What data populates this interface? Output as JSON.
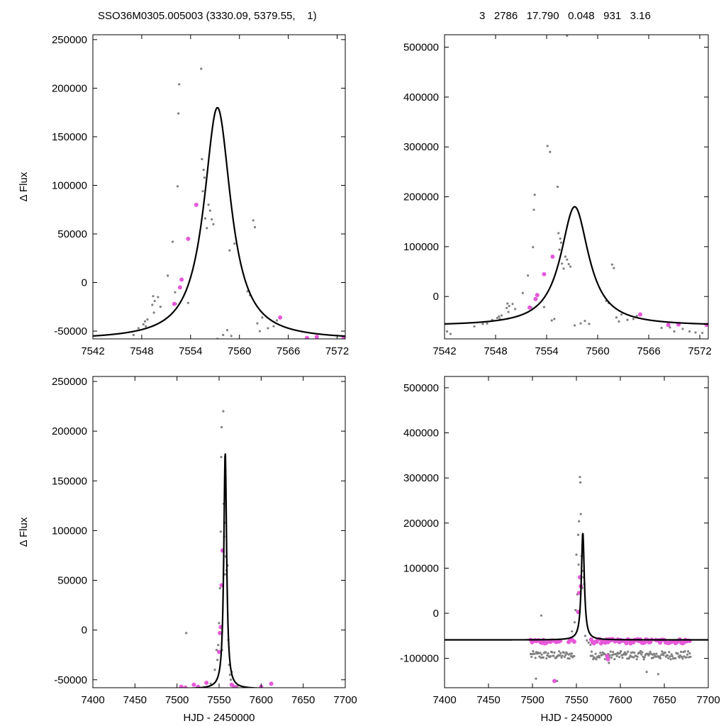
{
  "header": {
    "left": "SSO36M0305.005003 (3330.09, 5379.55,    1)",
    "right": "3   2786   17.790   0.048   931   3.16"
  },
  "colors": {
    "model": "#000000",
    "raw": "#808080",
    "binned": "#e659d8",
    "frame": "#000000"
  },
  "chart_data": [
    {
      "type": "scatter",
      "id": "top-left",
      "xlabel": "",
      "ylabel": "Δ Flux",
      "xlim": [
        7542,
        7573
      ],
      "ylim": [
        -58000,
        255000
      ],
      "xticks": [
        7542,
        7548,
        7554,
        7560,
        7566,
        7572
      ],
      "yticks": [
        -50000,
        0,
        50000,
        100000,
        150000,
        200000,
        250000
      ],
      "xtick_labels": [
        "7542",
        "7548",
        "7554",
        "7560",
        "7566",
        "7572"
      ],
      "ytick_labels": [
        "-50000",
        "0",
        "50000",
        "100000",
        "150000",
        "200000",
        "250000"
      ],
      "model": {
        "peak_x": 7557.3,
        "peak_y": 180000,
        "baseline": -59000,
        "width": 2.0,
        "curve": "lorentzian"
      },
      "series": [
        {
          "role": "raw",
          "x": [
            7547.0,
            7547.6,
            7548.2,
            7548.4,
            7548.5,
            7548.7,
            7549.3,
            7549.4,
            7549.5,
            7549.6,
            7550.0,
            7550.3,
            7551.2,
            7551.8,
            7552.2,
            7552.4,
            7552.5,
            7552.6,
            7553.7,
            7555.3,
            7555.4,
            7555.5,
            7555.6,
            7555.7,
            7555.8,
            7556.0,
            7556.2,
            7556.4,
            7556.6,
            7556.8,
            7557.3,
            7558.0,
            7558.5,
            7559.0,
            7561.0,
            7561.3,
            7561.7,
            7561.9,
            7562.2,
            7562.5,
            7562.8,
            7563.5,
            7564.2,
            7564.6,
            7559.4,
            7558.8,
            7552.1
          ],
          "y": [
            -54000,
            -47000,
            -43000,
            -40000,
            -45000,
            -38000,
            -23000,
            -14000,
            -31000,
            -19000,
            -15000,
            -25000,
            7000,
            42000,
            -22000,
            99000,
            174000,
            204000,
            -21000,
            220000,
            127000,
            94000,
            116000,
            108000,
            66000,
            56000,
            80000,
            74000,
            65000,
            60000,
            -58000,
            -54000,
            -49000,
            -55000,
            -9000,
            -13000,
            64000,
            57000,
            -42000,
            -50000,
            -36000,
            -47000,
            -45000,
            -39000,
            40000,
            33000,
            -10000
          ]
        },
        {
          "role": "binned",
          "x": [
            7552.0,
            7552.7,
            7552.9,
            7553.7,
            7554.7,
            7565.0,
            7568.3,
            7569.5,
            7572.8
          ],
          "y": [
            -22000,
            -5000,
            3000,
            45000,
            80000,
            -36000,
            -57000,
            -56000,
            -57000
          ]
        }
      ]
    },
    {
      "type": "scatter",
      "id": "top-right",
      "xlabel": "",
      "ylabel": "",
      "xlim": [
        7542,
        7573
      ],
      "ylim": [
        -85000,
        525000
      ],
      "xticks": [
        7542,
        7548,
        7554,
        7560,
        7566,
        7572
      ],
      "yticks": [
        0,
        100000,
        200000,
        300000,
        400000,
        500000
      ],
      "xtick_labels": [
        "7542",
        "7548",
        "7554",
        "7560",
        "7566",
        "7572"
      ],
      "ytick_labels": [
        "0",
        "100000",
        "200000",
        "300000",
        "400000",
        "500000"
      ],
      "model": {
        "peak_x": 7557.3,
        "peak_y": 180000,
        "baseline": -59000,
        "width": 2.0,
        "curve": "lorentzian"
      },
      "series": [
        {
          "role": "raw",
          "x": [
            7542.3,
            7542.7,
            7545.5,
            7546.5,
            7547.0,
            7547.6,
            7548.2,
            7548.4,
            7548.5,
            7548.7,
            7549.3,
            7549.4,
            7549.5,
            7549.6,
            7550.0,
            7550.3,
            7551.2,
            7551.8,
            7552.2,
            7552.4,
            7552.5,
            7552.6,
            7553.7,
            7554.6,
            7554.9,
            7555.3,
            7555.4,
            7555.5,
            7555.6,
            7555.7,
            7555.8,
            7556.0,
            7556.2,
            7556.4,
            7556.6,
            7556.8,
            7557.3,
            7558.0,
            7558.5,
            7559.0,
            7561.0,
            7561.3,
            7561.7,
            7561.9,
            7562.2,
            7562.5,
            7562.8,
            7563.5,
            7564.2,
            7564.6,
            7567.5,
            7568.5,
            7569.0,
            7570.0,
            7570.8,
            7571.5,
            7572.3,
            7556.4
          ],
          "y": [
            -70000,
            -75000,
            -60000,
            -55000,
            -54000,
            -47000,
            -43000,
            -40000,
            -45000,
            -38000,
            -23000,
            -14000,
            -31000,
            -19000,
            -15000,
            -25000,
            7000,
            42000,
            -22000,
            99000,
            174000,
            204000,
            -21000,
            -48000,
            -45000,
            220000,
            127000,
            94000,
            116000,
            108000,
            66000,
            56000,
            80000,
            74000,
            65000,
            60000,
            -58000,
            -54000,
            -49000,
            -55000,
            -9000,
            -13000,
            64000,
            57000,
            -42000,
            -50000,
            -36000,
            -47000,
            -45000,
            -39000,
            -63000,
            -62000,
            -70000,
            -65000,
            -70000,
            -72000,
            -73000,
            523000
          ]
        },
        {
          "role": "binned",
          "x": [
            7552.0,
            7552.7,
            7552.9,
            7553.7,
            7554.7,
            7565.0,
            7568.3,
            7569.5,
            7572.8
          ],
          "y": [
            -22000,
            -5000,
            3000,
            45000,
            80000,
            -36000,
            -57000,
            -56000,
            -57000
          ]
        },
        {
          "role": "raw-high",
          "x": [
            7554.1,
            7554.4
          ],
          "y": [
            302000,
            290000
          ]
        }
      ]
    },
    {
      "type": "scatter",
      "id": "bottom-left",
      "xlabel": "HJD - 2450000",
      "ylabel": "Δ Flux",
      "xlim": [
        7400,
        7700
      ],
      "ylim": [
        -58000,
        255000
      ],
      "xticks": [
        7400,
        7450,
        7500,
        7550,
        7600,
        7650,
        7700
      ],
      "yticks": [
        -50000,
        0,
        50000,
        100000,
        150000,
        200000,
        250000
      ],
      "xtick_labels": [
        "7400",
        "7450",
        "7500",
        "7550",
        "7600",
        "7650",
        "7700"
      ],
      "ytick_labels": [
        "-50000",
        "0",
        "50000",
        "100000",
        "150000",
        "200000",
        "250000"
      ],
      "model": {
        "peak_x": 7557.3,
        "peak_y": 180000,
        "baseline": -59000,
        "width": 2.0,
        "curve": "lorentzian"
      },
      "series": [
        {
          "role": "raw",
          "x": [
            7511,
            7540,
            7545,
            7547,
            7548,
            7549,
            7550,
            7551,
            7552,
            7552.5,
            7553,
            7553.5,
            7554,
            7555,
            7555.5,
            7556,
            7556.5,
            7557,
            7558,
            7559,
            7560,
            7561,
            7562,
            7563,
            7564,
            7565,
            7566,
            7570,
            7572
          ],
          "y": [
            -3000,
            -54000,
            -40000,
            -20000,
            -30000,
            -15000,
            7000,
            42000,
            99000,
            174000,
            204000,
            -20000,
            80000,
            220000,
            127000,
            94000,
            108000,
            56000,
            74000,
            60000,
            65000,
            -10000,
            -35000,
            -45000,
            -50000,
            -42000,
            -55000,
            -57000,
            -56000
          ]
        },
        {
          "role": "binned",
          "x": [
            7505,
            7510,
            7520,
            7525,
            7535,
            7550,
            7551,
            7552,
            7553,
            7554,
            7565,
            7568,
            7570,
            7600,
            7612
          ],
          "y": [
            -57000,
            -58000,
            -55000,
            -57000,
            -53000,
            -22000,
            -3000,
            3000,
            45000,
            80000,
            -55000,
            -57000,
            -58000,
            -57000,
            -54000
          ]
        }
      ]
    },
    {
      "type": "scatter",
      "id": "bottom-right",
      "xlabel": "HJD - 2450000",
      "ylabel": "",
      "xlim": [
        7400,
        7700
      ],
      "ylim": [
        -165000,
        525000
      ],
      "xticks": [
        7400,
        7450,
        7500,
        7550,
        7600,
        7650,
        7700
      ],
      "yticks": [
        -100000,
        0,
        100000,
        200000,
        300000,
        400000,
        500000
      ],
      "xtick_labels": [
        "7400",
        "7450",
        "7500",
        "7550",
        "7600",
        "7650",
        "7700"
      ],
      "ytick_labels": [
        "-100000",
        "0",
        "100000",
        "200000",
        "300000",
        "400000",
        "500000"
      ],
      "model": {
        "peak_x": 7557.3,
        "peak_y": 180000,
        "baseline": -59000,
        "width": 2.0,
        "curve": "lorentzian"
      },
      "baselines": {
        "raw_level": -93000,
        "raw_scatter": 9000,
        "binned_level": -62000,
        "binned_scatter": 5000,
        "x_start": 7498,
        "x_end": 7680
      },
      "series": [
        {
          "role": "raw-high",
          "x": [
            7510,
            7550,
            7552,
            7553,
            7554,
            7554.5,
            7555,
            7556,
            7557,
            7558,
            7559,
            7545,
            7548,
            7549,
            7551,
            7552.5,
            7556.5,
            7504,
            7528,
            7643,
            7630,
            7587,
            7560,
            7562,
            7564,
            7566
          ],
          "y": [
            -5000,
            130000,
            174000,
            204000,
            302000,
            290000,
            220000,
            127000,
            94000,
            80000,
            65000,
            -40000,
            -20000,
            7000,
            42000,
            108000,
            56000,
            -145000,
            -150000,
            -135000,
            -130000,
            -110000,
            -50000,
            -60000,
            -65000,
            -70000
          ]
        },
        {
          "role": "binned-extra",
          "x": [
            7552,
            7553,
            7554,
            7555,
            7585,
            7586,
            7525
          ],
          "y": [
            3000,
            45000,
            80000,
            60000,
            -95000,
            -102000,
            -150000
          ]
        }
      ]
    }
  ]
}
